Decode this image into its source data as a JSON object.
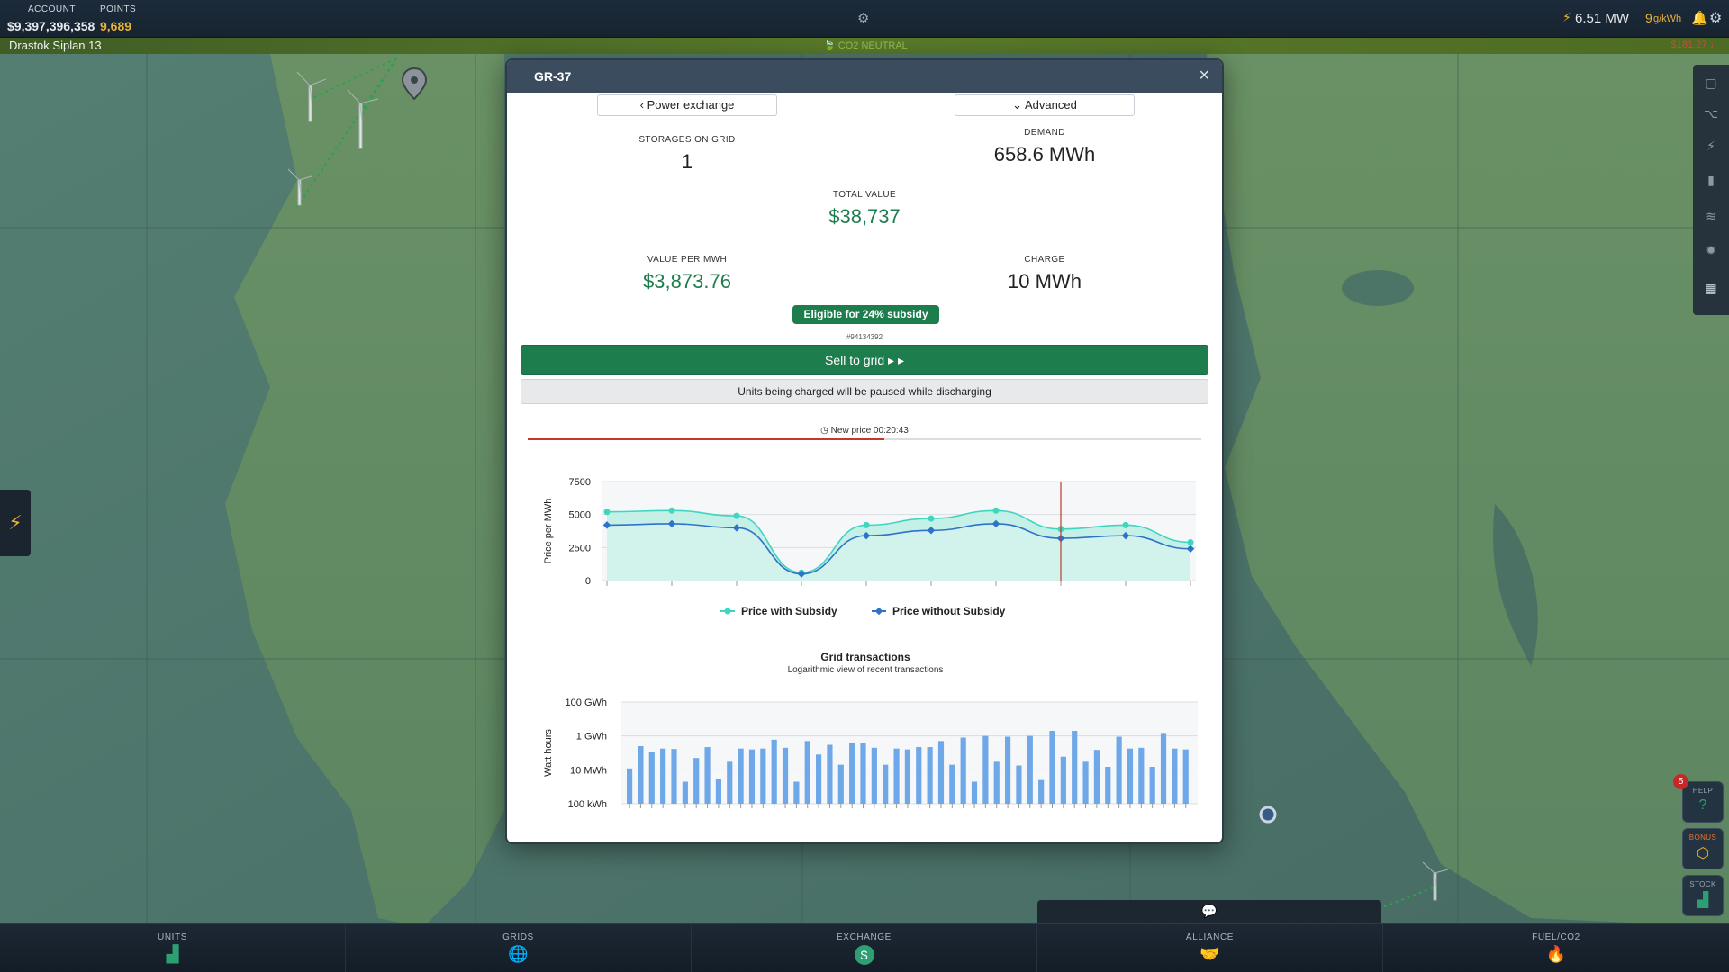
{
  "topbar": {
    "account_label": "ACCOUNT",
    "account_value": "$9,397,396,358",
    "points_label": "POINTS",
    "points_value": "9,689",
    "power_output": "6.51 MW",
    "co2_value": "9",
    "co2_unit": "g/kWh"
  },
  "subbar": {
    "player": "Drastok Siplan 13",
    "co2_status": "CO2 NEUTRAL",
    "cost": "$181.27"
  },
  "modal": {
    "title": "GR-37",
    "back_button": "Power exchange",
    "advanced_button": "Advanced",
    "storages_label": "STORAGES ON GRID",
    "storages_value": "1",
    "demand_label": "DEMAND",
    "demand_value": "658.6 MWh",
    "total_value_label": "TOTAL VALUE",
    "total_value": "$38,737",
    "value_per_mwh_label": "VALUE PER MWH",
    "value_per_mwh": "$3,873.76",
    "charge_label": "CHARGE",
    "charge_value": "10 MWh",
    "subsidy_badge": "Eligible for 24% subsidy",
    "ref_id": "#94134392",
    "sell_button": "Sell to grid",
    "pause_note": "Units being charged will be paused while discharging",
    "timer_text": "New price 00:20:43",
    "timer_progress": 0.53
  },
  "side_buttons": {
    "help_label": "HELP",
    "help_badge": "5",
    "bonus_label": "BONUS",
    "stock_label": "STOCK"
  },
  "bottomnav": {
    "units": "UNITS",
    "grids": "GRIDS",
    "exchange": "EXCHANGE",
    "alliance": "ALLIANCE",
    "fuel": "FUEL/CO2"
  },
  "colors": {
    "accent": "#1e7d4d",
    "subsidy_series": "#3fd6c0",
    "no_subsidy_series": "#2f72c9",
    "bars": "#6fa8e8",
    "current_marker": "#c0392b"
  },
  "chart_data": [
    {
      "type": "area",
      "title": "",
      "xlabel": "",
      "ylabel": "Price per MWh",
      "ylim": [
        0,
        7500
      ],
      "yticks": [
        "7500",
        "5000",
        "2500",
        "0"
      ],
      "current_index": 7,
      "legend": "bottom",
      "series": [
        {
          "name": "Price with Subsidy",
          "values": [
            5200,
            5300,
            4900,
            600,
            4200,
            4700,
            5300,
            3900,
            4200,
            2900
          ]
        },
        {
          "name": "Price without Subsidy",
          "values": [
            4200,
            4300,
            4000,
            500,
            3400,
            3800,
            4300,
            3200,
            3400,
            2400
          ]
        }
      ]
    },
    {
      "type": "bar",
      "title": "Grid transactions",
      "subtitle": "Logarithmic view of recent transactions",
      "ylabel": "Watt hours",
      "scale": "log",
      "yticks": [
        "100 GWh",
        "1 GWh",
        "10 MWh",
        "100 kWh"
      ],
      "ylim_wh": [
        100000,
        100000000000
      ],
      "values_wh": [
        12000000,
        250000000,
        120000000,
        180000000,
        170000000,
        2000000,
        50000000,
        220000000,
        3000000,
        30000000,
        180000000,
        160000000,
        180000000,
        600000000,
        200000000,
        2000000,
        500000000,
        80000000,
        300000000,
        20000000,
        400000000,
        380000000,
        200000000,
        20000000,
        180000000,
        160000000,
        220000000,
        220000000,
        500000000,
        20000000,
        800000000,
        2000000,
        1000000000,
        30000000,
        900000000,
        18000000,
        1000000000,
        2500000,
        2000000000,
        60000000,
        2000000000,
        30000000,
        150000000,
        15000000,
        900000000,
        180000000,
        200000000,
        15000000,
        1500000000,
        180000000,
        160000000
      ]
    }
  ]
}
